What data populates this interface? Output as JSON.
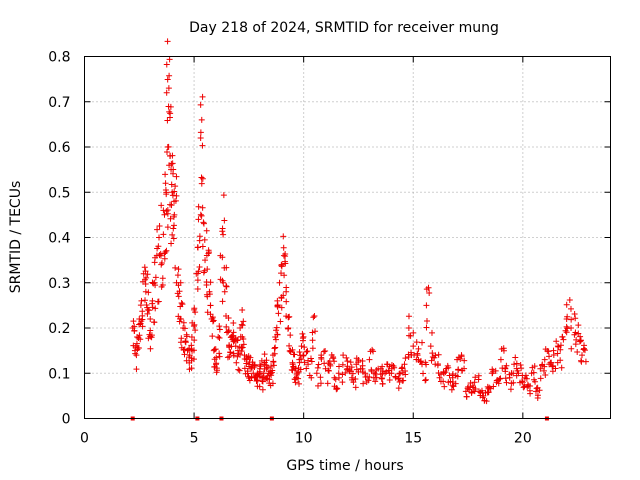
{
  "chart_data": {
    "type": "scatter",
    "title": "Day 218 of 2024, SRMTID for receiver mung",
    "xlabel": "GPS time / hours",
    "ylabel": "SRMTID / TECUs",
    "xlim": [
      0,
      24
    ],
    "ylim": [
      0,
      0.8
    ],
    "xticks": [
      "0",
      "5",
      "10",
      "15",
      "20"
    ],
    "yticks": [
      "0",
      "0.1",
      "0.2",
      "0.3",
      "0.4",
      "0.5",
      "0.6",
      "0.7",
      "0.8"
    ],
    "grid": true,
    "marker": "+",
    "color": "#ee0000",
    "gap_markers_x": [
      2.2,
      5.15,
      6.25,
      8.55,
      21.1
    ],
    "series": [
      {
        "name": "SRMTID",
        "x": [
          2.2,
          2.3,
          2.4,
          2.5,
          2.6,
          2.7,
          2.8,
          2.9,
          3.0,
          3.1,
          3.2,
          3.3,
          3.4,
          3.5,
          3.6,
          3.7,
          3.75,
          3.8,
          3.85,
          3.9,
          3.95,
          4.0,
          4.05,
          4.1,
          4.2,
          4.3,
          4.4,
          4.5,
          4.6,
          4.7,
          4.8,
          4.9,
          5.0,
          5.1,
          5.2,
          5.3,
          5.35,
          5.4,
          5.5,
          5.6,
          5.7,
          5.8,
          5.9,
          6.0,
          6.1,
          6.2,
          6.3,
          6.4,
          6.5,
          6.6,
          6.7,
          6.8,
          6.9,
          7.0,
          7.1,
          7.2,
          7.3,
          7.4,
          7.5,
          7.6,
          7.7,
          7.8,
          7.9,
          8.0,
          8.1,
          8.2,
          8.3,
          8.4,
          8.5,
          8.6,
          8.7,
          8.8,
          8.9,
          9.0,
          9.1,
          9.2,
          9.3,
          9.4,
          9.5,
          9.6,
          9.7,
          9.8,
          9.9,
          10.0,
          10.2,
          10.4,
          10.6,
          10.8,
          11.0,
          11.2,
          11.4,
          11.6,
          11.8,
          12.0,
          12.2,
          12.4,
          12.6,
          12.8,
          13.0,
          13.2,
          13.4,
          13.6,
          13.8,
          14.0,
          14.2,
          14.4,
          14.6,
          14.8,
          15.0,
          15.2,
          15.4,
          15.6,
          15.8,
          16.0,
          16.2,
          16.4,
          16.6,
          16.8,
          17.0,
          17.2,
          17.4,
          17.6,
          17.8,
          18.0,
          18.2,
          18.4,
          18.6,
          18.8,
          19.0,
          19.2,
          19.4,
          19.6,
          19.8,
          20.0,
          20.2,
          20.4,
          20.6,
          20.8,
          21.0,
          21.2,
          21.4,
          21.6,
          21.8,
          22.0,
          22.2,
          22.4,
          22.6,
          22.7
        ],
        "y": [
          0.2,
          0.15,
          0.18,
          0.22,
          0.26,
          0.32,
          0.28,
          0.24,
          0.22,
          0.26,
          0.3,
          0.36,
          0.4,
          0.34,
          0.46,
          0.52,
          0.72,
          0.6,
          0.73,
          0.58,
          0.55,
          0.5,
          0.42,
          0.45,
          0.3,
          0.27,
          0.22,
          0.2,
          0.17,
          0.15,
          0.14,
          0.18,
          0.24,
          0.32,
          0.44,
          0.62,
          0.66,
          0.38,
          0.35,
          0.33,
          0.28,
          0.22,
          0.15,
          0.12,
          0.18,
          0.36,
          0.42,
          0.28,
          0.19,
          0.16,
          0.18,
          0.17,
          0.16,
          0.15,
          0.2,
          0.18,
          0.14,
          0.13,
          0.12,
          0.11,
          0.1,
          0.09,
          0.1,
          0.11,
          0.09,
          0.12,
          0.11,
          0.1,
          0.1,
          0.14,
          0.18,
          0.26,
          0.3,
          0.34,
          0.36,
          0.28,
          0.2,
          0.15,
          0.12,
          0.11,
          0.1,
          0.13,
          0.16,
          0.14,
          0.12,
          0.19,
          0.1,
          0.14,
          0.11,
          0.12,
          0.09,
          0.1,
          0.14,
          0.11,
          0.09,
          0.12,
          0.11,
          0.1,
          0.13,
          0.09,
          0.11,
          0.1,
          0.12,
          0.1,
          0.09,
          0.1,
          0.12,
          0.2,
          0.16,
          0.14,
          0.12,
          0.25,
          0.16,
          0.12,
          0.09,
          0.1,
          0.08,
          0.09,
          0.13,
          0.14,
          0.06,
          0.07,
          0.08,
          0.06,
          0.05,
          0.07,
          0.1,
          0.08,
          0.13,
          0.11,
          0.09,
          0.12,
          0.1,
          0.08,
          0.07,
          0.1,
          0.06,
          0.11,
          0.13,
          0.12,
          0.15,
          0.16,
          0.18,
          0.22,
          0.2,
          0.19,
          0.17,
          0.14
        ]
      }
    ]
  }
}
